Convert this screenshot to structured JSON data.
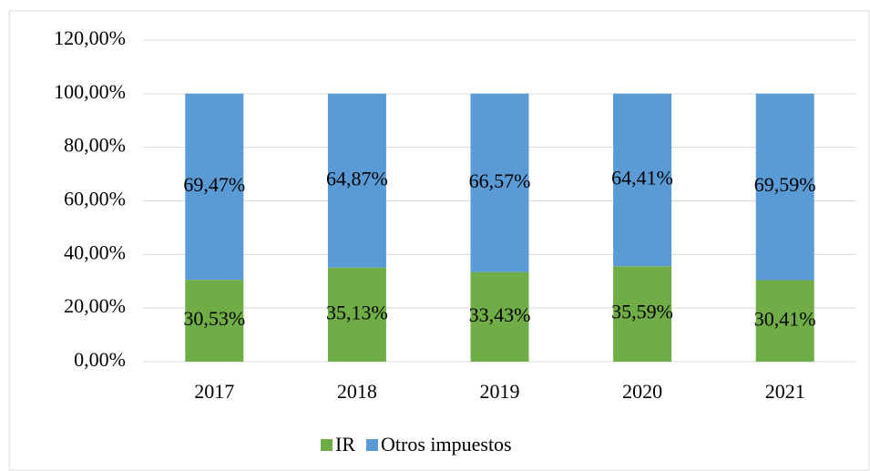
{
  "chart_data": {
    "type": "stacked_bar",
    "categories": [
      "2017",
      "2018",
      "2019",
      "2020",
      "2021"
    ],
    "series": [
      {
        "name": "IR",
        "color": "#70ad47",
        "values": [
          30.53,
          35.13,
          33.43,
          35.59,
          30.41
        ],
        "value_labels": [
          "30,53%",
          "35,13%",
          "33,43%",
          "35,59%",
          "30,41%"
        ]
      },
      {
        "name": "Otros impuestos",
        "color": "#5b9bd5",
        "values": [
          69.47,
          64.87,
          66.57,
          64.41,
          69.59
        ],
        "value_labels": [
          "69,47%",
          "64,87%",
          "66,57%",
          "64,41%",
          "69,59%"
        ]
      }
    ],
    "ylim": [
      0,
      120
    ],
    "yticks": [
      {
        "value": 0,
        "label": "0,00%"
      },
      {
        "value": 20,
        "label": "20,00%"
      },
      {
        "value": 40,
        "label": "40,00%"
      },
      {
        "value": 60,
        "label": "60,00%"
      },
      {
        "value": 80,
        "label": "80,00%"
      },
      {
        "value": 100,
        "label": "100,00%"
      },
      {
        "value": 120,
        "label": "120,00%"
      }
    ],
    "grid": true,
    "legend": "bottom"
  }
}
